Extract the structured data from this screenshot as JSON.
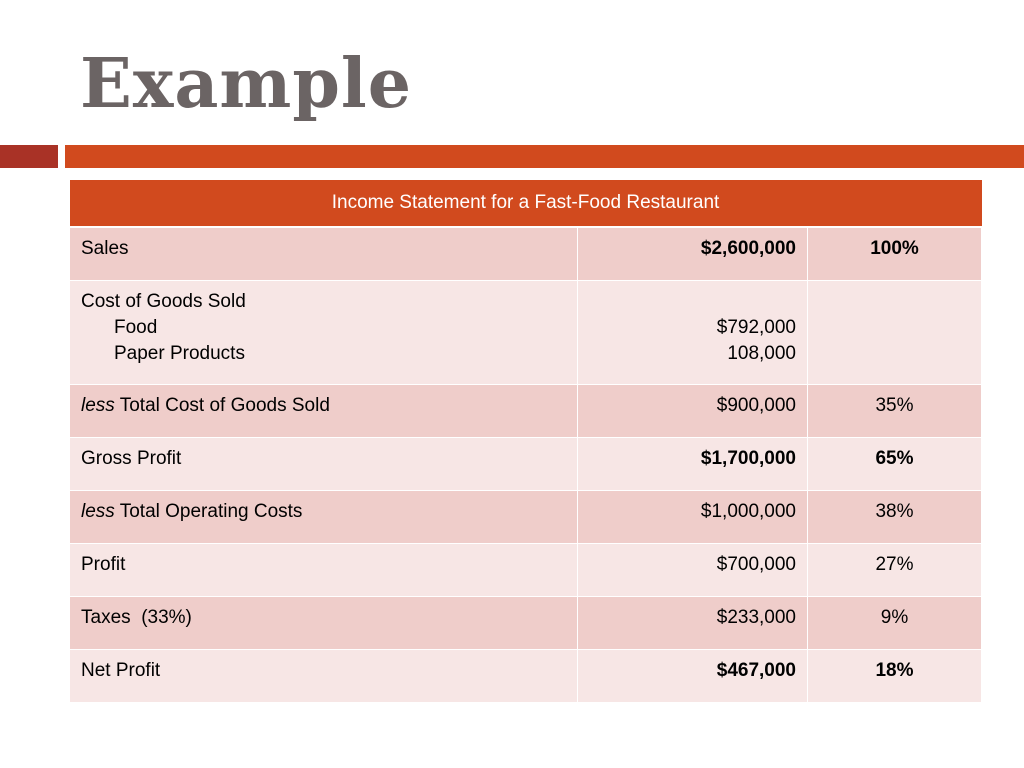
{
  "slide": {
    "title": "Example"
  },
  "colors": {
    "accent": "#d14a1e",
    "accent_dark": "#a93226",
    "row_dark": "#efcdca",
    "row_light": "#f7e6e5",
    "title_gray": "#6b6464"
  },
  "table": {
    "header": "Income Statement for a Fast-Food Restaurant",
    "rows": [
      {
        "label": "Sales",
        "amount": "$2,600,000",
        "percent": "100%"
      },
      {
        "label": "Cost of Goods Sold",
        "sub_items": [
          "Food",
          "Paper Products"
        ],
        "sub_amounts": [
          "$792,000",
          "108,000"
        ]
      },
      {
        "prefix": "less",
        "label": "Total Cost of Goods Sold",
        "amount": "$900,000",
        "percent": "35%"
      },
      {
        "label": "Gross Profit",
        "amount": "$1,700,000",
        "percent": "65%"
      },
      {
        "prefix": "less",
        "label": "Total Operating Costs",
        "amount": "$1,000,000",
        "percent": "38%"
      },
      {
        "label": "Profit",
        "amount": "$700,000",
        "percent": "27%"
      },
      {
        "label": "Taxes",
        "note": "(33%)",
        "amount": "$233,000",
        "percent": "9%"
      },
      {
        "label": "Net Profit",
        "amount": "$467,000",
        "percent": "18%"
      }
    ]
  }
}
